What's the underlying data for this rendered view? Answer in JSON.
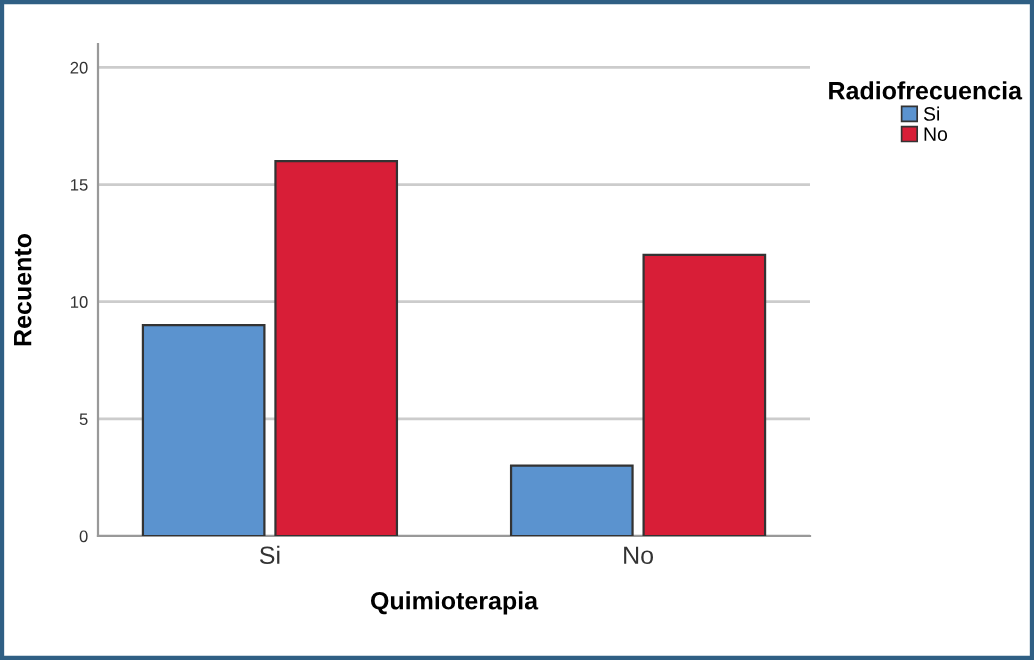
{
  "chart_data": {
    "type": "bar",
    "xlabel": "Quimioterapia",
    "ylabel": "Recuento",
    "legend_title": "Radiofrecuencia",
    "categories": [
      "Si",
      "No"
    ],
    "series": [
      {
        "name": "Si",
        "color": "#5b93cf",
        "values": [
          9,
          3
        ]
      },
      {
        "name": "No",
        "color": "#d81e37",
        "values": [
          16,
          12
        ]
      }
    ],
    "ylim": [
      0,
      21
    ],
    "yticks": [
      0,
      5,
      10,
      15,
      20
    ],
    "grid": "y",
    "legend": "top right"
  }
}
